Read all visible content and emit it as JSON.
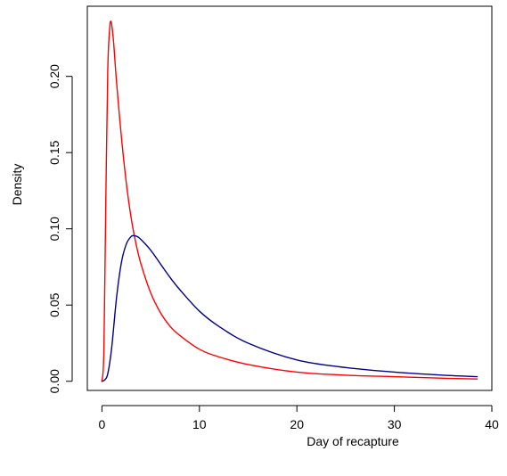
{
  "chart_data": {
    "type": "line",
    "title": "",
    "xlabel": "Day of recapture",
    "ylabel": "Density",
    "xlim": [
      -1.5,
      40
    ],
    "ylim": [
      -0.006,
      0.246
    ],
    "x_ticks": [
      0,
      10,
      20,
      30,
      40
    ],
    "y_ticks": [
      0.0,
      0.05,
      0.1,
      0.15,
      0.2
    ],
    "x_tick_labels": [
      "0",
      "10",
      "20",
      "30",
      "40"
    ],
    "y_tick_labels": [
      "0.00",
      "0.05",
      "0.10",
      "0.15",
      "0.20"
    ],
    "grid": false,
    "legend": "none",
    "series": [
      {
        "color": "#ff0000",
        "x": [
          0,
          0.2,
          0.4,
          0.6,
          0.8,
          0.9,
          1.0,
          1.2,
          1.5,
          2,
          2.5,
          3,
          3.5,
          4,
          5,
          6,
          7,
          8,
          10,
          12,
          15,
          20,
          25,
          30,
          35,
          38.5
        ],
        "y": [
          0,
          0.02,
          0.12,
          0.205,
          0.232,
          0.236,
          0.234,
          0.222,
          0.196,
          0.16,
          0.13,
          0.107,
          0.09,
          0.077,
          0.058,
          0.045,
          0.036,
          0.03,
          0.021,
          0.016,
          0.011,
          0.006,
          0.004,
          0.003,
          0.002,
          0.0015
        ]
      },
      {
        "color": "#00008b",
        "x": [
          0,
          0.3,
          0.6,
          1.0,
          1.5,
          2.0,
          2.5,
          3.0,
          3.3,
          3.6,
          4,
          5,
          6,
          7,
          8,
          10,
          12,
          15,
          20,
          25,
          30,
          35,
          38.5
        ],
        "y": [
          0,
          0.001,
          0.005,
          0.022,
          0.055,
          0.078,
          0.09,
          0.095,
          0.0955,
          0.095,
          0.093,
          0.086,
          0.077,
          0.068,
          0.06,
          0.046,
          0.036,
          0.025,
          0.014,
          0.009,
          0.006,
          0.004,
          0.003
        ]
      }
    ]
  }
}
